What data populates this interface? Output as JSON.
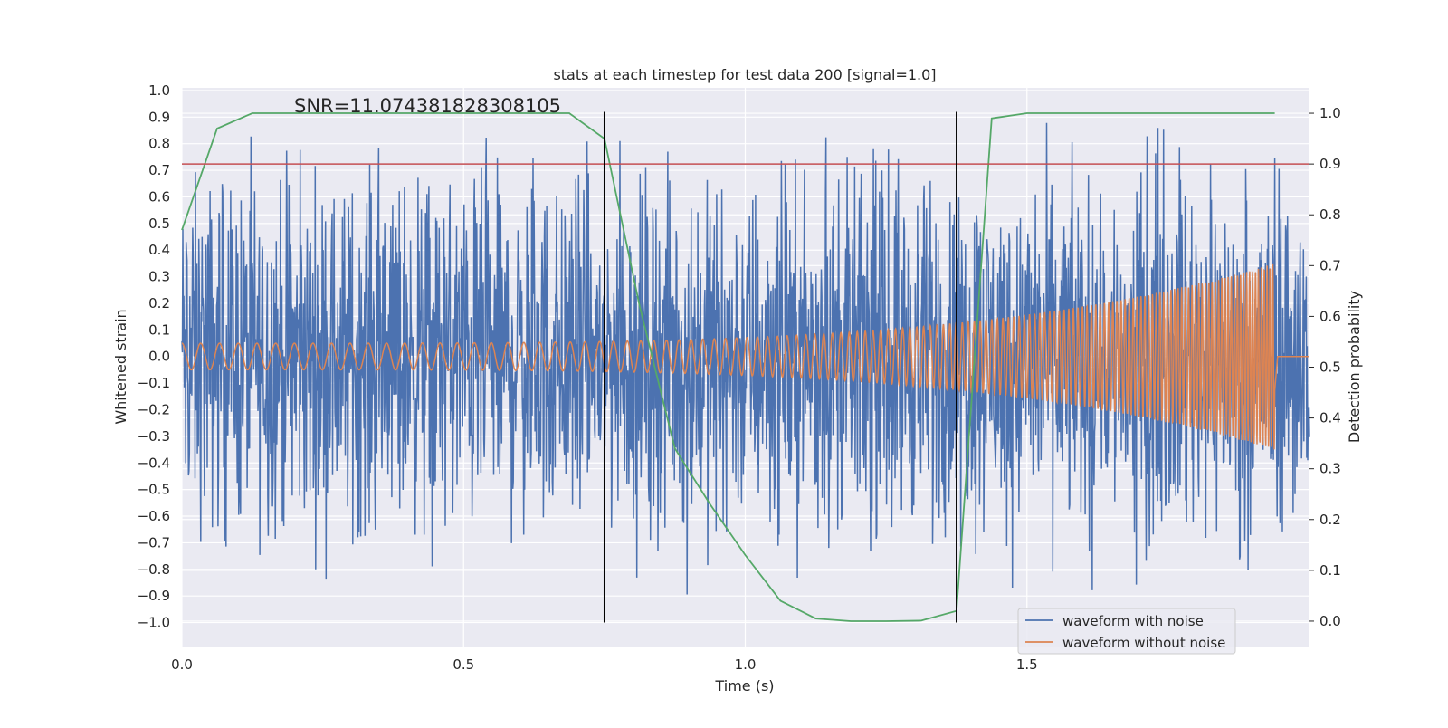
{
  "chart_data": {
    "type": "line",
    "title": "stats at each timestep for test data 200 [signal=1.0]",
    "xlabel": "Time (s)",
    "ylabel": "Whitened strain",
    "y2label": "Detection probability",
    "annotation": "SNR=11.074381828308105",
    "xlim": [
      0.0,
      2.0
    ],
    "ylim": [
      -1.09,
      1.01
    ],
    "y2lim": [
      -0.05,
      1.05
    ],
    "x_ticks": [
      0.0,
      0.5,
      1.0,
      1.5
    ],
    "x_tick_labels": [
      "0.0",
      "0.5",
      "1.0",
      "1.5"
    ],
    "y_ticks": [
      1.0,
      0.9,
      0.8,
      0.7,
      0.6,
      0.5,
      0.4,
      0.3,
      0.2,
      0.1,
      0.0,
      -0.1,
      -0.2,
      -0.3,
      -0.4,
      -0.5,
      -0.6,
      -0.7,
      -0.8,
      -0.9,
      -1.0
    ],
    "y_tick_labels": [
      "1.0",
      "0.9",
      "0.8",
      "0.7",
      "0.6",
      "0.5",
      "0.4",
      "0.3",
      "0.2",
      "0.1",
      "0.0",
      "−0.1",
      "−0.2",
      "−0.3",
      "−0.4",
      "−0.5",
      "−0.6",
      "−0.7",
      "−0.8",
      "−0.9",
      "−1.0"
    ],
    "y2_ticks": [
      1.0,
      0.9,
      0.8,
      0.7,
      0.6,
      0.5,
      0.4,
      0.3,
      0.2,
      0.1,
      0.0
    ],
    "y2_tick_labels": [
      "1.0",
      "0.9",
      "0.8",
      "0.7",
      "0.6",
      "0.5",
      "0.4",
      "0.3",
      "0.2",
      "0.1",
      "0.0"
    ],
    "grid": true,
    "legend_position": "lower-right",
    "series": [
      {
        "name": "waveform with noise",
        "color": "#4c72b0",
        "axis": "left",
        "description_values": {
          "amplitude_range": [
            -1.0,
            0.92
          ],
          "x_range": [
            0.0,
            2.0
          ]
        }
      },
      {
        "name": "waveform without noise",
        "color": "#dd8452",
        "axis": "left",
        "chirp": {
          "x_start": 0.0,
          "x_end": 1.94,
          "amp_start": 0.05,
          "amp_end": 0.35,
          "freq_start": 30,
          "freq_end": 200,
          "center": -0.0
        }
      },
      {
        "color": "#55a868",
        "axis": "right",
        "x": [
          0.0,
          0.0625,
          0.125,
          0.1875,
          0.25,
          0.3125,
          0.375,
          0.4375,
          0.5,
          0.5625,
          0.625,
          0.6875,
          0.75,
          0.8125,
          0.875,
          0.9375,
          1.0,
          1.0625,
          1.125,
          1.1875,
          1.25,
          1.3125,
          1.375,
          1.4375,
          1.5,
          1.5625,
          1.625,
          1.6875,
          1.75,
          1.8125,
          1.875,
          1.94
        ],
        "values": [
          0.77,
          0.97,
          1.0,
          1.0,
          1.0,
          1.0,
          1.0,
          1.0,
          1.0,
          1.0,
          1.0,
          1.0,
          0.95,
          0.62,
          0.34,
          0.23,
          0.13,
          0.04,
          0.005,
          0.0,
          0.0,
          0.001,
          0.02,
          0.99,
          1.0,
          1.0,
          1.0,
          1.0,
          1.0,
          1.0,
          1.0,
          1.0
        ]
      }
    ],
    "hlines": [
      {
        "axis": "right",
        "y": 0.9,
        "color": "#c44e52"
      }
    ],
    "vlines": [
      {
        "x": 0.75,
        "y_range": [
          -1.0,
          0.92
        ],
        "color": "#000000"
      },
      {
        "x": 1.375,
        "y_range": [
          -1.0,
          0.92
        ],
        "color": "#000000"
      }
    ],
    "colors": {
      "background": "#eaeaf2",
      "grid": "#ffffff",
      "text": "#262626"
    }
  }
}
